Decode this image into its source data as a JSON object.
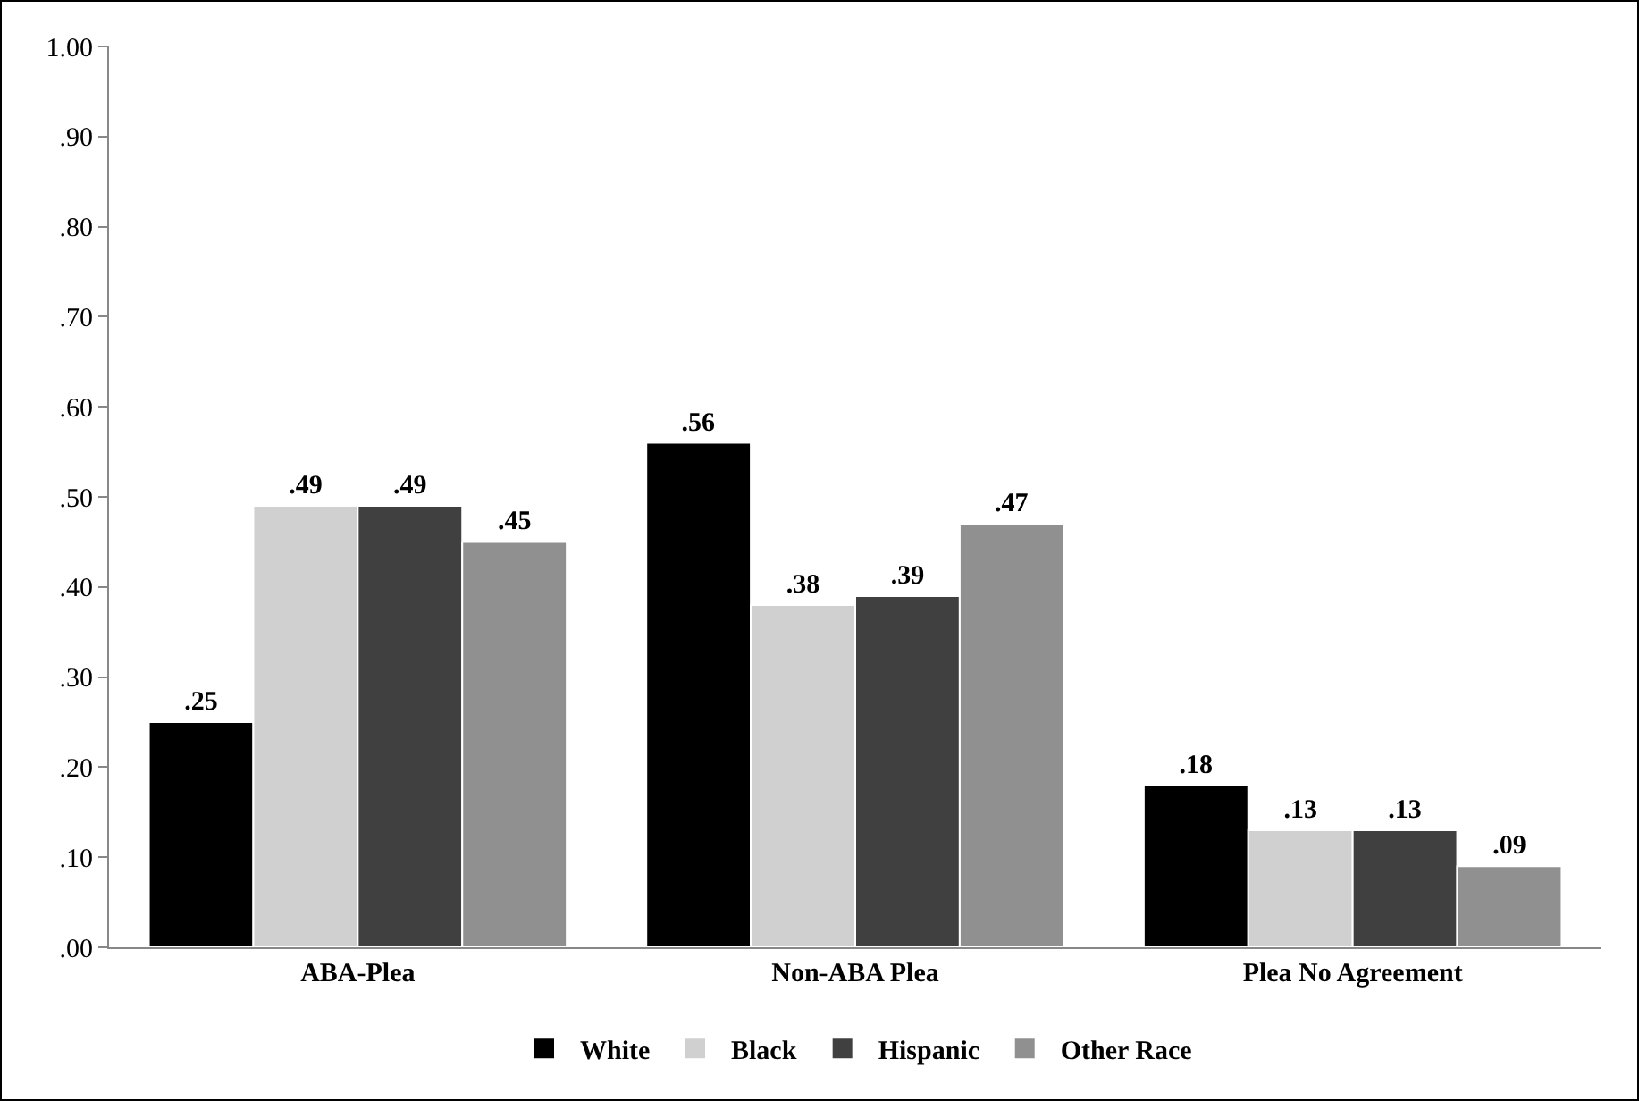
{
  "chart_data": {
    "type": "bar",
    "categories": [
      "ABA-Plea",
      "Non-ABA Plea",
      "Plea No Agreement"
    ],
    "series": [
      {
        "name": "White",
        "color": "#000000",
        "values": [
          0.25,
          0.56,
          0.18
        ],
        "value_labels": [
          ".25",
          ".56",
          ".18"
        ]
      },
      {
        "name": "Black",
        "color": "#d0d0d0",
        "values": [
          0.49,
          0.38,
          0.13
        ],
        "value_labels": [
          ".49",
          ".38",
          ".13"
        ]
      },
      {
        "name": "Hispanic",
        "color": "#404040",
        "values": [
          0.49,
          0.39,
          0.13
        ],
        "value_labels": [
          ".49",
          ".39",
          ".13"
        ]
      },
      {
        "name": "Other Race",
        "color": "#909090",
        "values": [
          0.45,
          0.47,
          0.09
        ],
        "value_labels": [
          ".45",
          ".47",
          ".09"
        ]
      }
    ],
    "ylim": [
      0,
      1
    ],
    "yticks": [
      {
        "value": 0,
        "label": ".00"
      },
      {
        "value": 0.1,
        "label": ".10"
      },
      {
        "value": 0.2,
        "label": ".20"
      },
      {
        "value": 0.3,
        "label": ".30"
      },
      {
        "value": 0.4,
        "label": ".40"
      },
      {
        "value": 0.5,
        "label": ".50"
      },
      {
        "value": 0.6,
        "label": ".60"
      },
      {
        "value": 0.7,
        "label": ".70"
      },
      {
        "value": 0.8,
        "label": ".80"
      },
      {
        "value": 0.9,
        "label": ".90"
      },
      {
        "value": 1,
        "label": "1.00"
      }
    ],
    "grid": false,
    "legend": "bottom"
  }
}
